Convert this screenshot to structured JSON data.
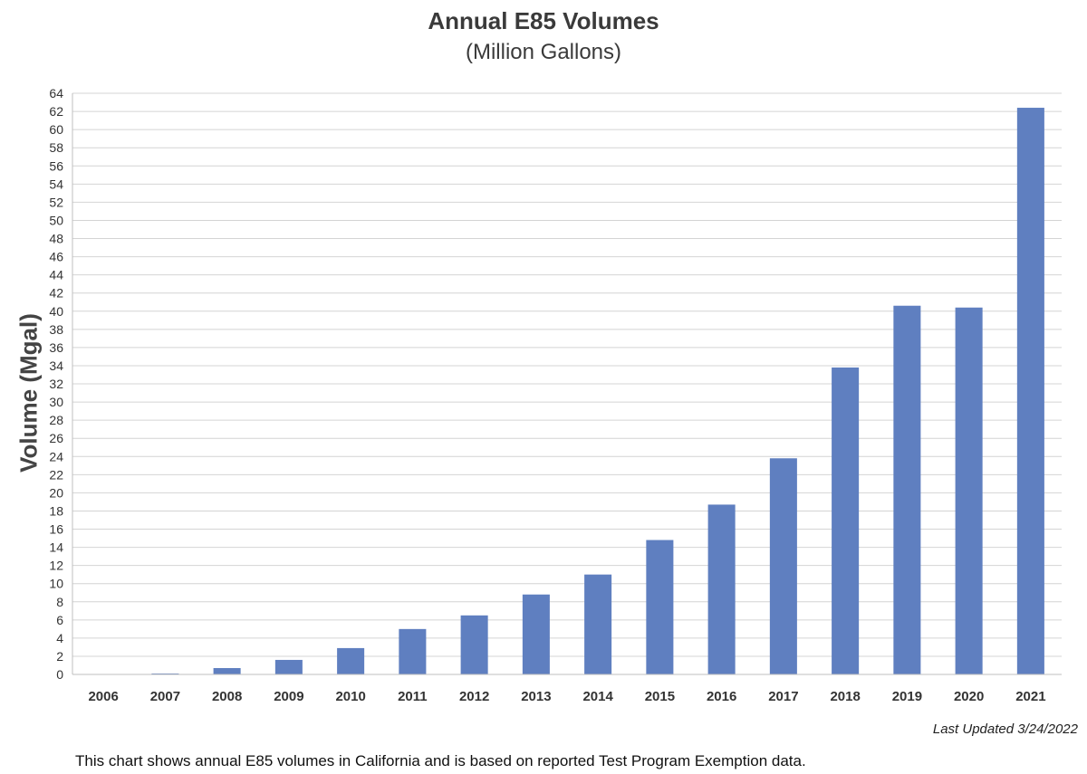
{
  "chart_data": {
    "type": "bar",
    "title": "Annual E85 Volumes",
    "subtitle": "(Million Gallons)",
    "xlabel": "",
    "ylabel": "Volume (Mgal)",
    "categories": [
      "2006",
      "2007",
      "2008",
      "2009",
      "2010",
      "2011",
      "2012",
      "2013",
      "2014",
      "2015",
      "2016",
      "2017",
      "2018",
      "2019",
      "2020",
      "2021"
    ],
    "values": [
      0,
      0.1,
      0.7,
      1.6,
      2.9,
      5.0,
      6.5,
      8.8,
      11.0,
      14.8,
      18.7,
      23.8,
      33.8,
      40.6,
      40.4,
      62.4
    ],
    "ylim": [
      0,
      64
    ],
    "yticks": [
      0,
      2,
      4,
      6,
      8,
      10,
      12,
      14,
      16,
      18,
      20,
      22,
      24,
      26,
      28,
      30,
      32,
      34,
      36,
      38,
      40,
      42,
      44,
      46,
      48,
      50,
      52,
      54,
      56,
      58,
      60,
      62,
      64
    ],
    "grid": true,
    "bar_color": "#5f7fc0"
  },
  "last_updated": "Last Updated 3/24/2022",
  "footnote": "This chart shows annual E85 volumes in California and is based on reported Test Program Exemption data."
}
